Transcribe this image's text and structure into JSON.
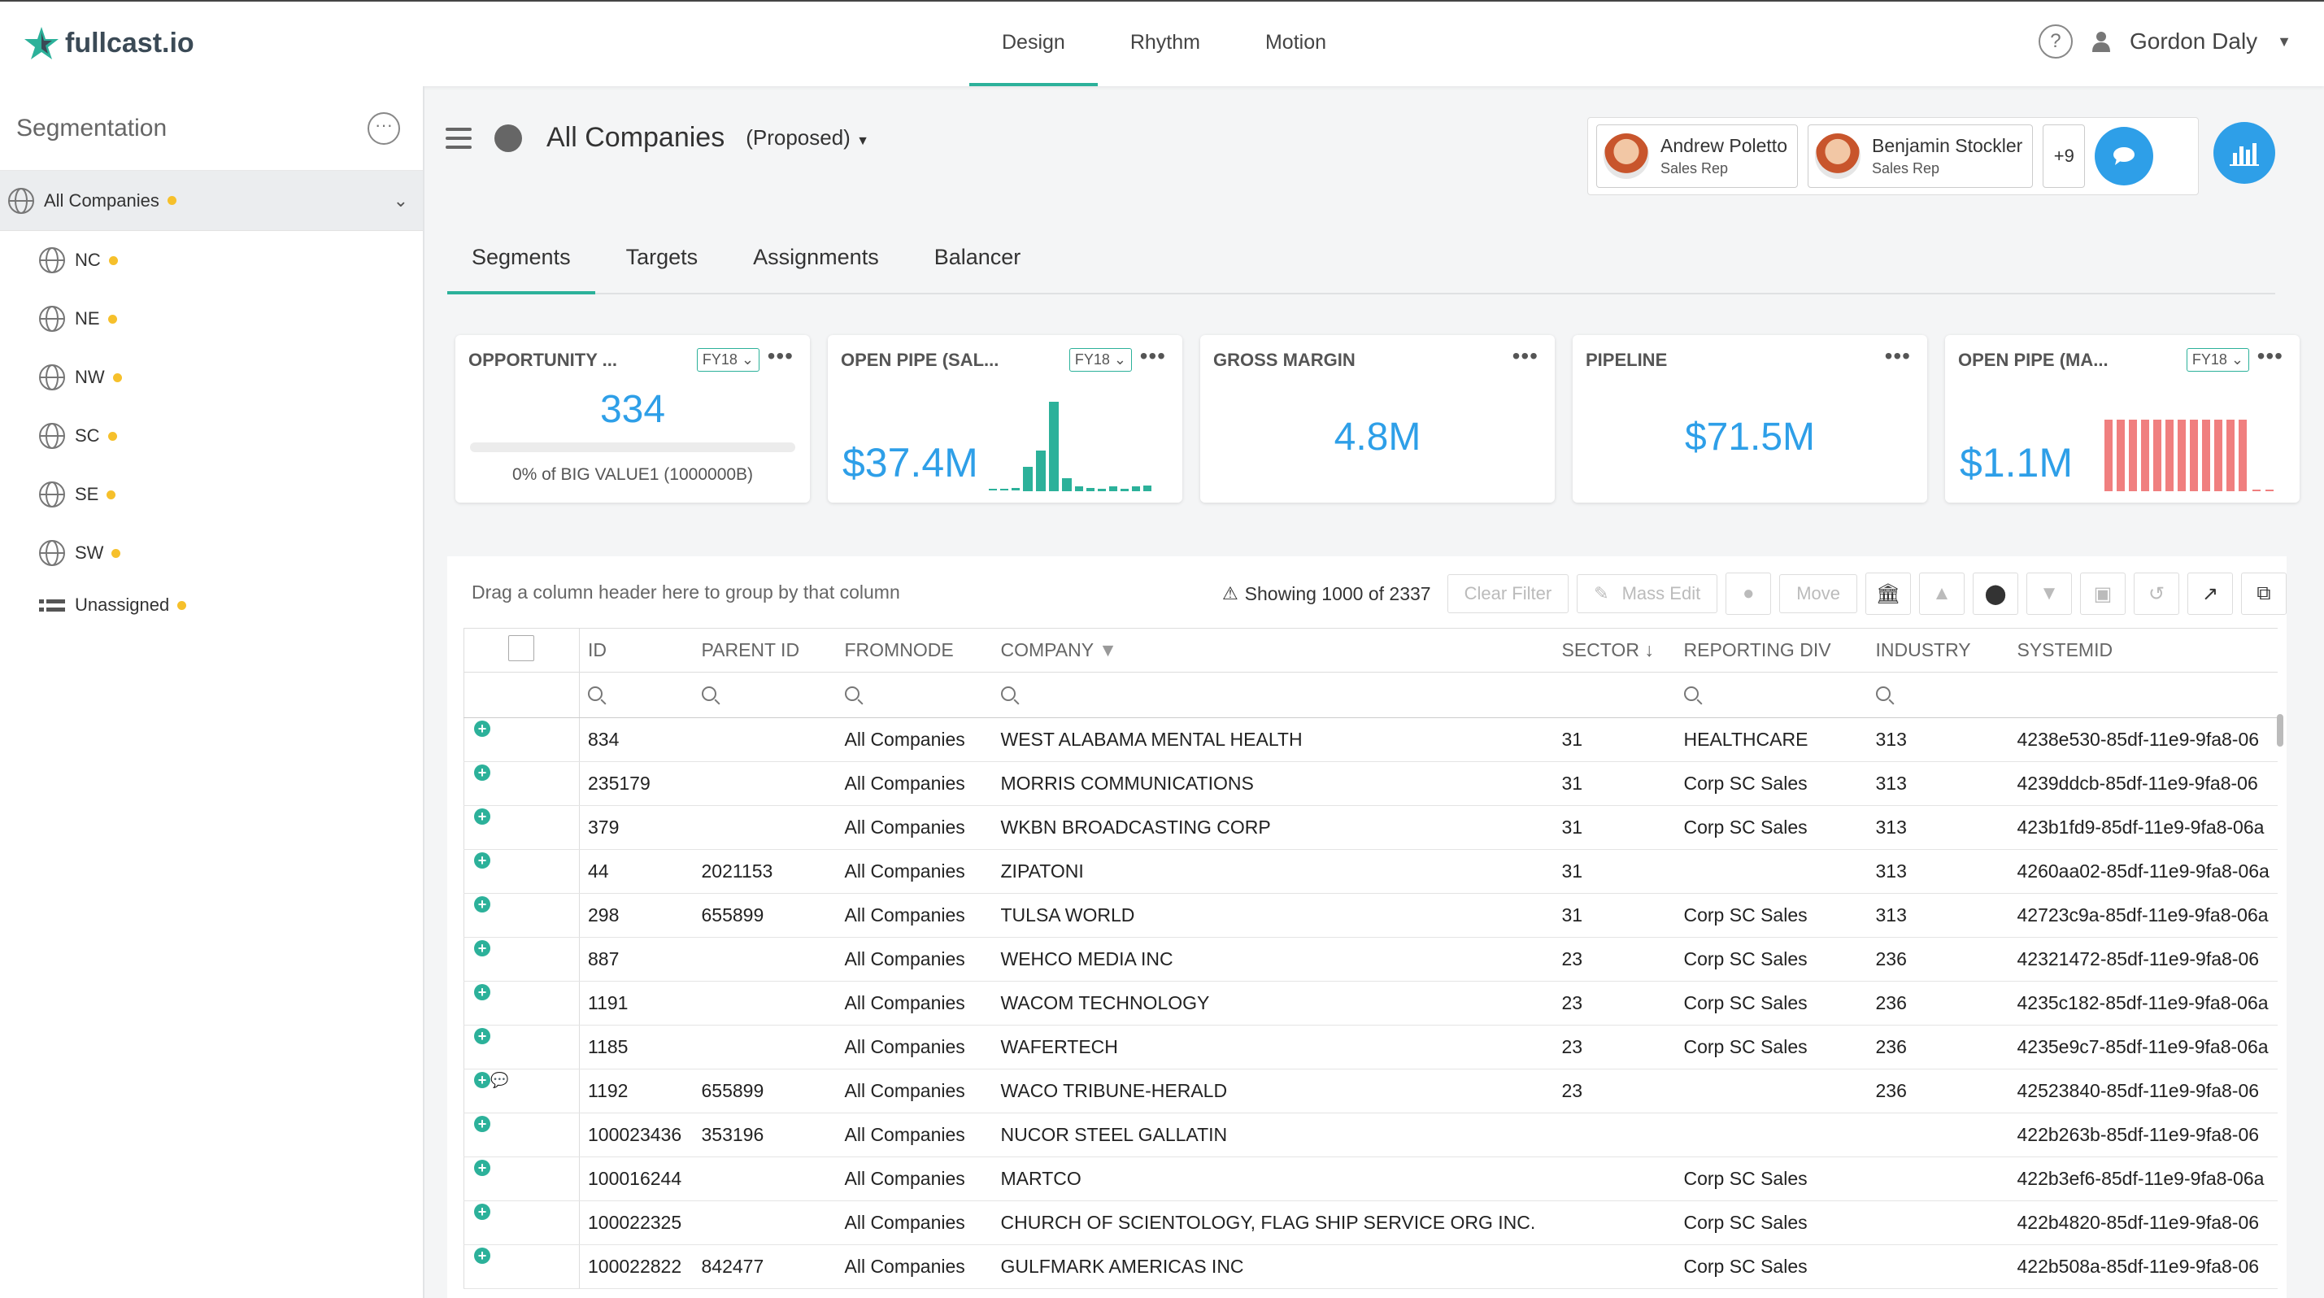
{
  "brand": {
    "name": "fullcast.io"
  },
  "nav": {
    "items": [
      "Design",
      "Rhythm",
      "Motion"
    ],
    "active": "Design"
  },
  "user": {
    "name": "Gordon Daly",
    "help": "?"
  },
  "sidebar": {
    "title": "Segmentation",
    "root": "All Companies",
    "items": [
      {
        "label": "NC"
      },
      {
        "label": "NE"
      },
      {
        "label": "NW"
      },
      {
        "label": "SC"
      },
      {
        "label": "SE"
      },
      {
        "label": "SW"
      },
      {
        "label": "Unassigned"
      }
    ]
  },
  "header": {
    "title": "All Companies",
    "state": "(Proposed)"
  },
  "team": {
    "members": [
      {
        "name": "Andrew Poletto",
        "role": "Sales Rep"
      },
      {
        "name": "Benjamin Stockler",
        "role": "Sales Rep"
      }
    ],
    "more": "+9"
  },
  "tabs": [
    "Segments",
    "Targets",
    "Assignments",
    "Balancer"
  ],
  "kpis": [
    {
      "title": "OPPORTUNITY ...",
      "fy": "FY18",
      "value": "334",
      "sub": "0% of BIG VALUE1 (1000000B)",
      "progress": 0
    },
    {
      "title": "OPEN PIPE (SAL...",
      "fy": "FY18",
      "value": "$37.4M"
    },
    {
      "title": "GROSS MARGIN",
      "value": "4.8M"
    },
    {
      "title": "PIPELINE",
      "value": "$71.5M"
    },
    {
      "title": "OPEN PIPE (MA...",
      "fy": "FY18",
      "value": "$1.1M"
    }
  ],
  "colors": {
    "accent": "#2cb19a",
    "blue": "#2e9fe8",
    "dot": "#f6c02b",
    "bars_red": "#f07f7f"
  },
  "grid": {
    "hint": "Drag a column header here to group by that column",
    "showing": "Showing 1000 of 2337",
    "buttons": {
      "clear": "Clear Filter",
      "mass_edit": "Mass Edit",
      "move": "Move"
    },
    "columns": [
      "ID",
      "PARENT ID",
      "FROMNODE",
      "COMPANY",
      "SECTOR",
      "REPORTING DIV",
      "INDUSTRY",
      "SYSTEMID"
    ],
    "rows": [
      [
        "834",
        "",
        "All Companies",
        "WEST ALABAMA MENTAL HEALTH",
        "31",
        "HEALTHCARE",
        "313",
        "4238e530-85df-11e9-9fa8-06"
      ],
      [
        "235179",
        "",
        "All Companies",
        "MORRIS COMMUNICATIONS",
        "31",
        "Corp SC Sales",
        "313",
        "4239ddcb-85df-11e9-9fa8-06"
      ],
      [
        "379",
        "",
        "All Companies",
        "WKBN BROADCASTING CORP",
        "31",
        "Corp SC Sales",
        "313",
        "423b1fd9-85df-11e9-9fa8-06a"
      ],
      [
        "44",
        "2021153",
        "All Companies",
        "ZIPATONI",
        "31",
        "",
        "313",
        "4260aa02-85df-11e9-9fa8-06a"
      ],
      [
        "298",
        "655899",
        "All Companies",
        "TULSA WORLD",
        "31",
        "Corp SC Sales",
        "313",
        "42723c9a-85df-11e9-9fa8-06a"
      ],
      [
        "887",
        "",
        "All Companies",
        "WEHCO MEDIA INC",
        "23",
        "Corp SC Sales",
        "236",
        "42321472-85df-11e9-9fa8-06"
      ],
      [
        "1191",
        "",
        "All Companies",
        "WACOM TECHNOLOGY",
        "23",
        "Corp SC Sales",
        "236",
        "4235c182-85df-11e9-9fa8-06a"
      ],
      [
        "1185",
        "",
        "All Companies",
        "WAFERTECH",
        "23",
        "Corp SC Sales",
        "236",
        "4235e9c7-85df-11e9-9fa8-06a"
      ],
      [
        "1192",
        "655899",
        "All Companies",
        "WACO TRIBUNE-HERALD",
        "23",
        "",
        "236",
        "42523840-85df-11e9-9fa8-06"
      ],
      [
        "100023436",
        "353196",
        "All Companies",
        "NUCOR STEEL GALLATIN",
        "",
        "",
        "",
        "422b263b-85df-11e9-9fa8-06"
      ],
      [
        "100016244",
        "",
        "All Companies",
        "MARTCO",
        "",
        "Corp SC Sales",
        "",
        "422b3ef6-85df-11e9-9fa8-06a"
      ],
      [
        "100022325",
        "",
        "All Companies",
        "CHURCH OF SCIENTOLOGY, FLAG SHIP SERVICE ORG INC.",
        "",
        "Corp SC Sales",
        "",
        "422b4820-85df-11e9-9fa8-06"
      ],
      [
        "100022822",
        "842477",
        "All Companies",
        "GULFMARK AMERICAS INC",
        "",
        "Corp SC Sales",
        "",
        "422b508a-85df-11e9-9fa8-06"
      ]
    ]
  }
}
